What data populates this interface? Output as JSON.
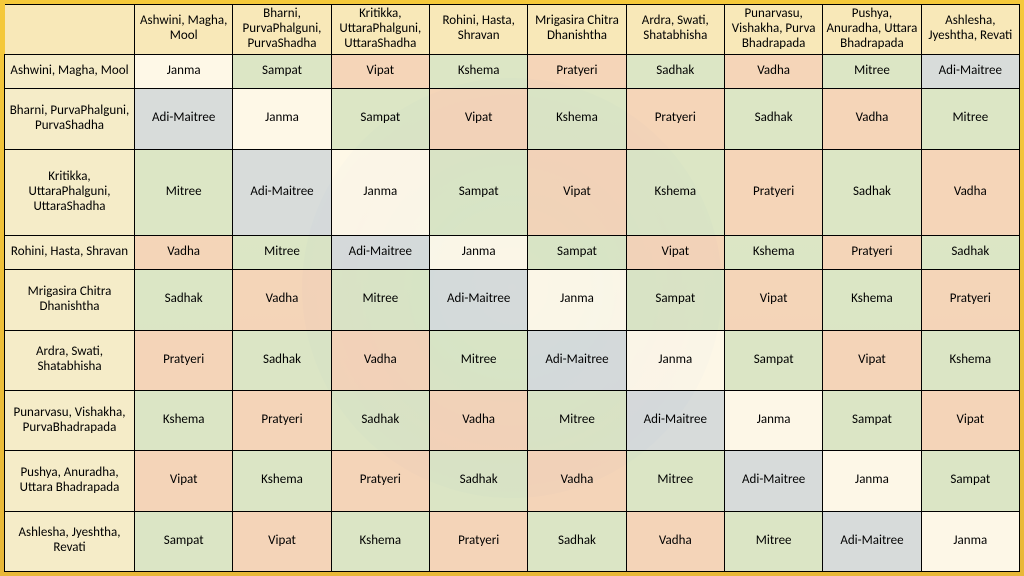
{
  "colors": {
    "header_col": "#f8e8b8",
    "header_row": "#f5ecc8",
    "Janma": "#ffffff",
    "Sampat": "#d8ebd8",
    "Vipat": "#f5d7ca",
    "Kshema": "#d8ebd8",
    "Pratyeri": "#f5d7ca",
    "Sadhak": "#d8ebd8",
    "Vadha": "#f5d7ca",
    "Mitree": "#d8ebd8",
    "Adi-Maitree": "#d4dff0"
  },
  "col_headers": [
    "Ashwini, Magha, Mool",
    "Bharni, PurvaPhalguni, PurvaShadha",
    "Kritikka, UttaraPhalguni, UttaraShadha",
    "Rohini, Hasta, Shravan",
    "Mrigasira Chitra Dhanishtha",
    "Ardra, Swati, Shatabhisha",
    "Punarvasu, Vishakha, Purva Bhadrapada",
    "Pushya, Anuradha, Uttara Bhadrapada",
    "Ashlesha, Jyeshtha, Revati"
  ],
  "row_headers": [
    "Ashwini, Magha, Mool",
    "Bharni, PurvaPhalguni, PurvaShadha",
    "Kritikka, UttaraPhalguni, UttaraShadha",
    "Rohini, Hasta, Shravan",
    "Mrigasira Chitra Dhanishtha",
    "Ardra, Swati, Shatabhisha",
    "Punarvasu, Vishakha, PurvaBhadrapada",
    "Pushya, Anuradha, Uttara Bhadrapada",
    "Ashlesha, Jyeshtha, Revati"
  ],
  "cells": [
    [
      "Janma",
      "Sampat",
      "Vipat",
      "Kshema",
      "Pratyeri",
      "Sadhak",
      "Vadha",
      "Mitree",
      "Adi-Maitree"
    ],
    [
      "Adi-Maitree",
      "Janma",
      "Sampat",
      "Vipat",
      "Kshema",
      "Pratyeri",
      "Sadhak",
      "Vadha",
      "Mitree"
    ],
    [
      "Mitree",
      "Adi-Maitree",
      "Janma",
      "Sampat",
      "Vipat",
      "Kshema",
      "Pratyeri",
      "Sadhak",
      "Vadha"
    ],
    [
      "Vadha",
      "Mitree",
      "Adi-Maitree",
      "Janma",
      "Sampat",
      "Vipat",
      "Kshema",
      "Pratyeri",
      "Sadhak"
    ],
    [
      "Sadhak",
      "Vadha",
      "Mitree",
      "Adi-Maitree",
      "Janma",
      "Sampat",
      "Vipat",
      "Kshema",
      "Pratyeri"
    ],
    [
      "Pratyeri",
      "Sadhak",
      "Vadha",
      "Mitree",
      "Adi-Maitree",
      "Janma",
      "Sampat",
      "Vipat",
      "Kshema"
    ],
    [
      "Kshema",
      "Pratyeri",
      "Sadhak",
      "Vadha",
      "Mitree",
      "Adi-Maitree",
      "Janma",
      "Sampat",
      "Vipat"
    ],
    [
      "Vipat",
      "Kshema",
      "Pratyeri",
      "Sadhak",
      "Vadha",
      "Mitree",
      "Adi-Maitree",
      "Janma",
      "Sampat"
    ],
    [
      "Sampat",
      "Vipat",
      "Kshema",
      "Pratyeri",
      "Sadhak",
      "Vadha",
      "Mitree",
      "Adi-Maitree",
      "Janma"
    ]
  ]
}
